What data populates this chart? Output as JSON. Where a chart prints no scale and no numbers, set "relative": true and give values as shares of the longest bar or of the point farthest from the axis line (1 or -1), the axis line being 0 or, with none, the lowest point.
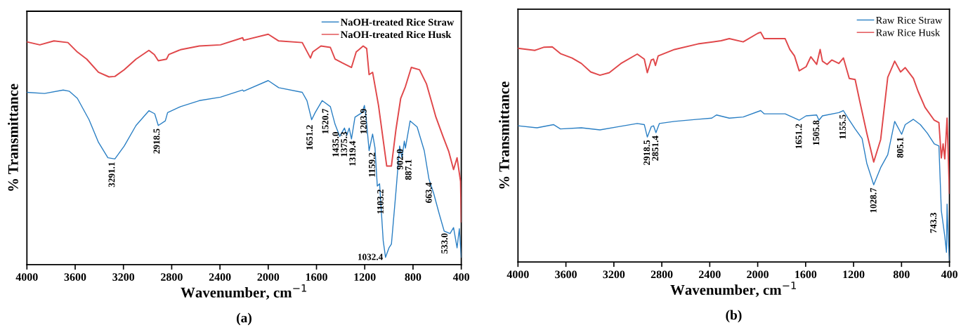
{
  "chart_data": [
    {
      "type": "line",
      "title": "(a)",
      "xlabel": "Wavenumber, cm$^{−1}$",
      "ylabel": "% Transmittance",
      "relative": true,
      "xlim": [
        4000,
        400
      ],
      "xticks": [
        4000,
        3600,
        3200,
        2800,
        2400,
        2000,
        1600,
        1200,
        800,
        400
      ],
      "grid": false,
      "legend": "top right",
      "line_style": "solid",
      "series": [
        {
          "name": "NaOH-treated Rice Straw",
          "color": "#2a7fc4",
          "x": [
            4000,
            3854,
            3699,
            3650,
            3582,
            3485,
            3407,
            3329,
            3271,
            3193,
            3096,
            2989,
            2941,
            2911,
            2853,
            2834,
            2727,
            2571,
            2396,
            2212,
            2204,
            2000,
            1913,
            1718,
            1679,
            1640,
            1611,
            1553,
            1485,
            1446,
            1407,
            1368,
            1349,
            1329,
            1310,
            1281,
            1222,
            1203,
            1189,
            1164,
            1135,
            1115,
            1096,
            1077,
            1047,
            1028,
            999,
            979,
            941,
            911,
            892,
            872,
            863,
            824,
            766,
            707,
            668,
            629,
            581,
            542,
            493,
            464,
            435,
            416,
            400
          ],
          "values": [
            0.748,
            0.743,
            0.758,
            0.753,
            0.722,
            0.629,
            0.531,
            0.464,
            0.459,
            0.515,
            0.604,
            0.668,
            0.655,
            0.604,
            0.624,
            0.66,
            0.686,
            0.712,
            0.727,
            0.758,
            0.753,
            0.799,
            0.768,
            0.748,
            0.712,
            0.629,
            0.66,
            0.712,
            0.686,
            0.609,
            0.557,
            0.593,
            0.562,
            0.593,
            0.546,
            0.64,
            0.66,
            0.691,
            0.64,
            0.495,
            0.567,
            0.506,
            0.341,
            0.351,
            0.104,
            0.032,
            0.073,
            0.089,
            0.32,
            0.515,
            0.464,
            0.536,
            0.506,
            0.624,
            0.598,
            0.495,
            0.372,
            0.31,
            0.217,
            0.146,
            0.135,
            0.161,
            0.073,
            0.156,
            0.032
          ]
        },
        {
          "name": "NaOH-treated Rice Husk",
          "color": "#e0474a",
          "x": [
            4000,
            3893,
            3776,
            3660,
            3582,
            3504,
            3407,
            3320,
            3271,
            3193,
            3096,
            2989,
            2944,
            2911,
            2843,
            2824,
            2727,
            2571,
            2396,
            2212,
            2204,
            2000,
            1913,
            1718,
            1650,
            1631,
            1563,
            1485,
            1446,
            1388,
            1310,
            1271,
            1213,
            1184,
            1164,
            1135,
            1086,
            1018,
            979,
            941,
            902,
            863,
            814,
            746,
            688,
            649,
            610,
            552,
            503,
            464,
            435,
            406,
            400
          ],
          "values": [
            0.967,
            0.954,
            0.971,
            0.964,
            0.923,
            0.892,
            0.835,
            0.815,
            0.817,
            0.846,
            0.892,
            0.93,
            0.912,
            0.885,
            0.892,
            0.912,
            0.933,
            0.949,
            0.954,
            0.985,
            0.974,
            1.0,
            0.971,
            0.964,
            0.897,
            0.923,
            0.949,
            0.943,
            0.892,
            0.876,
            0.856,
            0.923,
            0.949,
            0.938,
            0.825,
            0.835,
            0.691,
            0.428,
            0.428,
            0.588,
            0.722,
            0.773,
            0.856,
            0.846,
            0.784,
            0.712,
            0.64,
            0.557,
            0.49,
            0.413,
            0.464,
            0.361,
            0.186
          ]
        }
      ],
      "annotations": [
        {
          "text": "3291.1",
          "x": 3291.1,
          "y": 0.459
        },
        {
          "text": "2918.5",
          "x": 2918.5,
          "y": 0.604
        },
        {
          "text": "1651.2",
          "x": 1651.2,
          "y": 0.62
        },
        {
          "text": "1520.7",
          "x": 1520.7,
          "y": 0.69
        },
        {
          "text": "1435.0",
          "x": 1435.0,
          "y": 0.59
        },
        {
          "text": "1375.3",
          "x": 1375.3,
          "y": 0.59
        },
        {
          "text": "1319.4",
          "x": 1319.4,
          "y": 0.55
        },
        {
          "text": "1203.9",
          "x": 1203.9,
          "y": 0.69
        },
        {
          "text": "1159.2",
          "x": 1159.2,
          "y": 0.5
        },
        {
          "text": "1103.2",
          "x": 1103.2,
          "y": 0.34
        },
        {
          "text": "1032.4",
          "x": 1032.4,
          "y": 0.03
        },
        {
          "text": "902.0",
          "x": 902.0,
          "y": 0.515
        },
        {
          "text": "887.1",
          "x": 887.1,
          "y": 0.47
        },
        {
          "text": "663.4",
          "x": 663.4,
          "y": 0.37
        },
        {
          "text": "533.0",
          "x": 533.0,
          "y": 0.15
        }
      ]
    },
    {
      "type": "line",
      "title": "(b)",
      "xlabel": "Wavenumber, cm$^{−1}$",
      "ylabel": "% Transmittance",
      "relative": true,
      "xlim": [
        4000,
        400
      ],
      "xticks": [
        4000,
        3600,
        3200,
        2800,
        2400,
        2000,
        1600,
        1200,
        800,
        400
      ],
      "grid": false,
      "legend": "top right",
      "line_style": "solid",
      "series": [
        {
          "name": "Raw Rice Straw",
          "color": "#2a7fc4",
          "x": [
            4000,
            3841,
            3704,
            3646,
            3471,
            3316,
            3160,
            3005,
            2946,
            2921,
            2888,
            2869,
            2849,
            2820,
            2694,
            2499,
            2383,
            2344,
            2237,
            2121,
            1975,
            1946,
            1771,
            1654,
            1596,
            1508,
            1489,
            1460,
            1323,
            1285,
            1246,
            1187,
            1129,
            1090,
            1032,
            974,
            915,
            857,
            799,
            769,
            701,
            643,
            585,
            527,
            488,
            468,
            439,
            425,
            420,
            410,
            400
          ],
          "values": [
            0.593,
            0.584,
            0.598,
            0.579,
            0.584,
            0.575,
            0.589,
            0.603,
            0.598,
            0.544,
            0.589,
            0.593,
            0.563,
            0.603,
            0.612,
            0.621,
            0.626,
            0.64,
            0.626,
            0.631,
            0.659,
            0.645,
            0.645,
            0.617,
            0.636,
            0.64,
            0.617,
            0.636,
            0.65,
            0.659,
            0.626,
            0.579,
            0.537,
            0.43,
            0.336,
            0.411,
            0.467,
            0.612,
            0.556,
            0.598,
            0.621,
            0.598,
            0.561,
            0.514,
            0.505,
            0.224,
            0.112,
            0.042,
            0.252,
            0.093,
            0.009
          ]
        },
        {
          "name": "Raw Rice Husk",
          "color": "#e0474a",
          "x": [
            4000,
            3860,
            3782,
            3714,
            3646,
            3549,
            3471,
            3393,
            3316,
            3238,
            3141,
            3005,
            2946,
            2921,
            2888,
            2869,
            2853,
            2830,
            2694,
            2499,
            2305,
            2237,
            2121,
            2000,
            1975,
            1946,
            1771,
            1732,
            1693,
            1654,
            1596,
            1557,
            1508,
            1479,
            1460,
            1421,
            1382,
            1323,
            1285,
            1236,
            1187,
            1149,
            1090,
            1032,
            974,
            915,
            857,
            808,
            769,
            701,
            662,
            604,
            527,
            488,
            468,
            453,
            439,
            420,
            400
          ],
          "values": [
            0.93,
            0.921,
            0.935,
            0.936,
            0.907,
            0.888,
            0.864,
            0.827,
            0.813,
            0.824,
            0.864,
            0.905,
            0.883,
            0.824,
            0.879,
            0.883,
            0.855,
            0.897,
            0.925,
            0.949,
            0.963,
            0.972,
            0.958,
            0.995,
            1.0,
            0.972,
            0.972,
            0.925,
            0.897,
            0.832,
            0.85,
            0.893,
            0.86,
            0.925,
            0.874,
            0.86,
            0.879,
            0.864,
            0.888,
            0.799,
            0.794,
            0.701,
            0.561,
            0.435,
            0.533,
            0.804,
            0.874,
            0.827,
            0.846,
            0.799,
            0.743,
            0.673,
            0.617,
            0.607,
            0.453,
            0.514,
            0.449,
            0.626,
            0.299
          ]
        }
      ],
      "annotations": [
        {
          "text": "2918.5",
          "x": 2918.5,
          "y": 0.544
        },
        {
          "text": "2851.4",
          "x": 2851.4,
          "y": 0.563
        },
        {
          "text": "1651.2",
          "x": 1651.2,
          "y": 0.615
        },
        {
          "text": "1505.8",
          "x": 1505.8,
          "y": 0.63
        },
        {
          "text": "1155.5",
          "x": 1285,
          "y": 0.655
        },
        {
          "text": "1028.7",
          "x": 1028.7,
          "y": 0.336
        },
        {
          "text": "805.1",
          "x": 805.1,
          "y": 0.556
        },
        {
          "text": "743.3",
          "x": 468,
          "y": 0.224
        }
      ]
    }
  ]
}
